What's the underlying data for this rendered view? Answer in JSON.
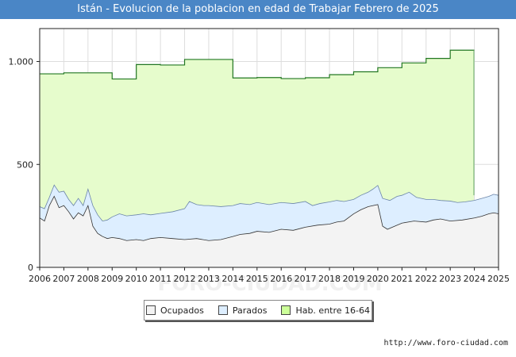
{
  "chart_data": {
    "type": "area",
    "title": "Istán - Evolucion de la poblacion en edad de Trabajar Febrero de 2025",
    "xlabel": "",
    "ylabel": "",
    "x_ticks": [
      "2006",
      "2007",
      "2008",
      "2009",
      "2010",
      "2011",
      "2012",
      "2013",
      "2014",
      "2015",
      "2016",
      "2017",
      "2018",
      "2019",
      "2020",
      "2021",
      "2022",
      "2023",
      "2024",
      "2025"
    ],
    "y_ticks": [
      {
        "value": 0,
        "label": "0"
      },
      {
        "value": 500,
        "label": "500"
      },
      {
        "value": 1000,
        "label": "1.000"
      }
    ],
    "xlim": [
      2006,
      2025
    ],
    "ylim": [
      0,
      1160
    ],
    "grid": true,
    "legend_position": "bottom-center",
    "series": [
      {
        "name": "Hab. entre 16-64",
        "kind": "step",
        "color": "#e6fccc",
        "stroke": "#227722",
        "points": [
          [
            2006.0,
            940
          ],
          [
            2007.0,
            945
          ],
          [
            2008.0,
            945
          ],
          [
            2009.0,
            915
          ],
          [
            2010.0,
            985
          ],
          [
            2011.0,
            983
          ],
          [
            2012.0,
            1010
          ],
          [
            2013.0,
            1010
          ],
          [
            2014.0,
            920
          ],
          [
            2015.0,
            922
          ],
          [
            2016.0,
            917
          ],
          [
            2017.0,
            921
          ],
          [
            2018.0,
            936
          ],
          [
            2019.0,
            950
          ],
          [
            2020.0,
            970
          ],
          [
            2021.0,
            993
          ],
          [
            2022.0,
            1015
          ],
          [
            2023.0,
            1055
          ],
          [
            2024.0,
            1055
          ]
        ]
      },
      {
        "name": "Parados",
        "kind": "line",
        "color": "#ddeeff",
        "stroke": "#6b85a8",
        "points": [
          [
            2006.0,
            295
          ],
          [
            2006.2,
            285
          ],
          [
            2006.4,
            340
          ],
          [
            2006.6,
            400
          ],
          [
            2006.8,
            365
          ],
          [
            2007.0,
            370
          ],
          [
            2007.2,
            330
          ],
          [
            2007.4,
            300
          ],
          [
            2007.6,
            335
          ],
          [
            2007.8,
            300
          ],
          [
            2008.0,
            380
          ],
          [
            2008.2,
            300
          ],
          [
            2008.4,
            255
          ],
          [
            2008.6,
            225
          ],
          [
            2008.8,
            230
          ],
          [
            2009.0,
            245
          ],
          [
            2009.3,
            260
          ],
          [
            2009.6,
            250
          ],
          [
            2010.0,
            255
          ],
          [
            2010.3,
            260
          ],
          [
            2010.6,
            255
          ],
          [
            2011.0,
            262
          ],
          [
            2011.5,
            270
          ],
          [
            2012.0,
            285
          ],
          [
            2012.2,
            320
          ],
          [
            2012.5,
            305
          ],
          [
            2012.8,
            300
          ],
          [
            2013.0,
            300
          ],
          [
            2013.5,
            295
          ],
          [
            2014.0,
            300
          ],
          [
            2014.3,
            310
          ],
          [
            2014.7,
            305
          ],
          [
            2015.0,
            315
          ],
          [
            2015.5,
            305
          ],
          [
            2016.0,
            315
          ],
          [
            2016.5,
            310
          ],
          [
            2017.0,
            320
          ],
          [
            2017.3,
            300
          ],
          [
            2017.6,
            310
          ],
          [
            2018.0,
            318
          ],
          [
            2018.3,
            325
          ],
          [
            2018.6,
            320
          ],
          [
            2019.0,
            330
          ],
          [
            2019.3,
            350
          ],
          [
            2019.6,
            365
          ],
          [
            2019.8,
            380
          ],
          [
            2020.0,
            398
          ],
          [
            2020.2,
            335
          ],
          [
            2020.5,
            325
          ],
          [
            2020.8,
            345
          ],
          [
            2021.0,
            350
          ],
          [
            2021.3,
            365
          ],
          [
            2021.6,
            340
          ],
          [
            2022.0,
            330
          ],
          [
            2022.3,
            330
          ],
          [
            2022.6,
            325
          ],
          [
            2023.0,
            322
          ],
          [
            2023.3,
            315
          ],
          [
            2023.6,
            318
          ],
          [
            2024.0,
            325
          ],
          [
            2024.3,
            335
          ],
          [
            2024.6,
            345
          ],
          [
            2024.8,
            355
          ],
          [
            2025.0,
            350
          ]
        ]
      },
      {
        "name": "Ocupados",
        "kind": "line",
        "color": "#f3f3f3",
        "stroke": "#333333",
        "points": [
          [
            2006.0,
            240
          ],
          [
            2006.2,
            225
          ],
          [
            2006.4,
            300
          ],
          [
            2006.6,
            345
          ],
          [
            2006.8,
            290
          ],
          [
            2007.0,
            300
          ],
          [
            2007.2,
            270
          ],
          [
            2007.4,
            235
          ],
          [
            2007.6,
            265
          ],
          [
            2007.8,
            250
          ],
          [
            2008.0,
            300
          ],
          [
            2008.2,
            200
          ],
          [
            2008.4,
            165
          ],
          [
            2008.6,
            150
          ],
          [
            2008.8,
            140
          ],
          [
            2009.0,
            145
          ],
          [
            2009.3,
            140
          ],
          [
            2009.6,
            130
          ],
          [
            2010.0,
            135
          ],
          [
            2010.3,
            130
          ],
          [
            2010.6,
            140
          ],
          [
            2011.0,
            145
          ],
          [
            2011.5,
            140
          ],
          [
            2012.0,
            135
          ],
          [
            2012.5,
            140
          ],
          [
            2013.0,
            130
          ],
          [
            2013.5,
            135
          ],
          [
            2014.0,
            150
          ],
          [
            2014.3,
            160
          ],
          [
            2014.7,
            165
          ],
          [
            2015.0,
            175
          ],
          [
            2015.5,
            170
          ],
          [
            2016.0,
            185
          ],
          [
            2016.5,
            180
          ],
          [
            2017.0,
            195
          ],
          [
            2017.5,
            205
          ],
          [
            2018.0,
            210
          ],
          [
            2018.3,
            220
          ],
          [
            2018.6,
            225
          ],
          [
            2019.0,
            260
          ],
          [
            2019.3,
            280
          ],
          [
            2019.6,
            295
          ],
          [
            2020.0,
            305
          ],
          [
            2020.2,
            200
          ],
          [
            2020.4,
            185
          ],
          [
            2020.7,
            200
          ],
          [
            2021.0,
            215
          ],
          [
            2021.5,
            225
          ],
          [
            2022.0,
            220
          ],
          [
            2022.3,
            230
          ],
          [
            2022.6,
            235
          ],
          [
            2023.0,
            225
          ],
          [
            2023.5,
            230
          ],
          [
            2024.0,
            240
          ],
          [
            2024.3,
            248
          ],
          [
            2024.6,
            260
          ],
          [
            2024.8,
            265
          ],
          [
            2025.0,
            260
          ]
        ]
      }
    ]
  },
  "legend": {
    "items": [
      {
        "label": "Ocupados",
        "color": "#f3f3f3"
      },
      {
        "label": "Parados",
        "color": "#ddeeff"
      },
      {
        "label": "Hab. entre 16-64",
        "color": "#ccff99"
      }
    ]
  },
  "footer": {
    "url": "http://www.foro-ciudad.com",
    "watermark": "FORO-CIUDAD.COM"
  }
}
